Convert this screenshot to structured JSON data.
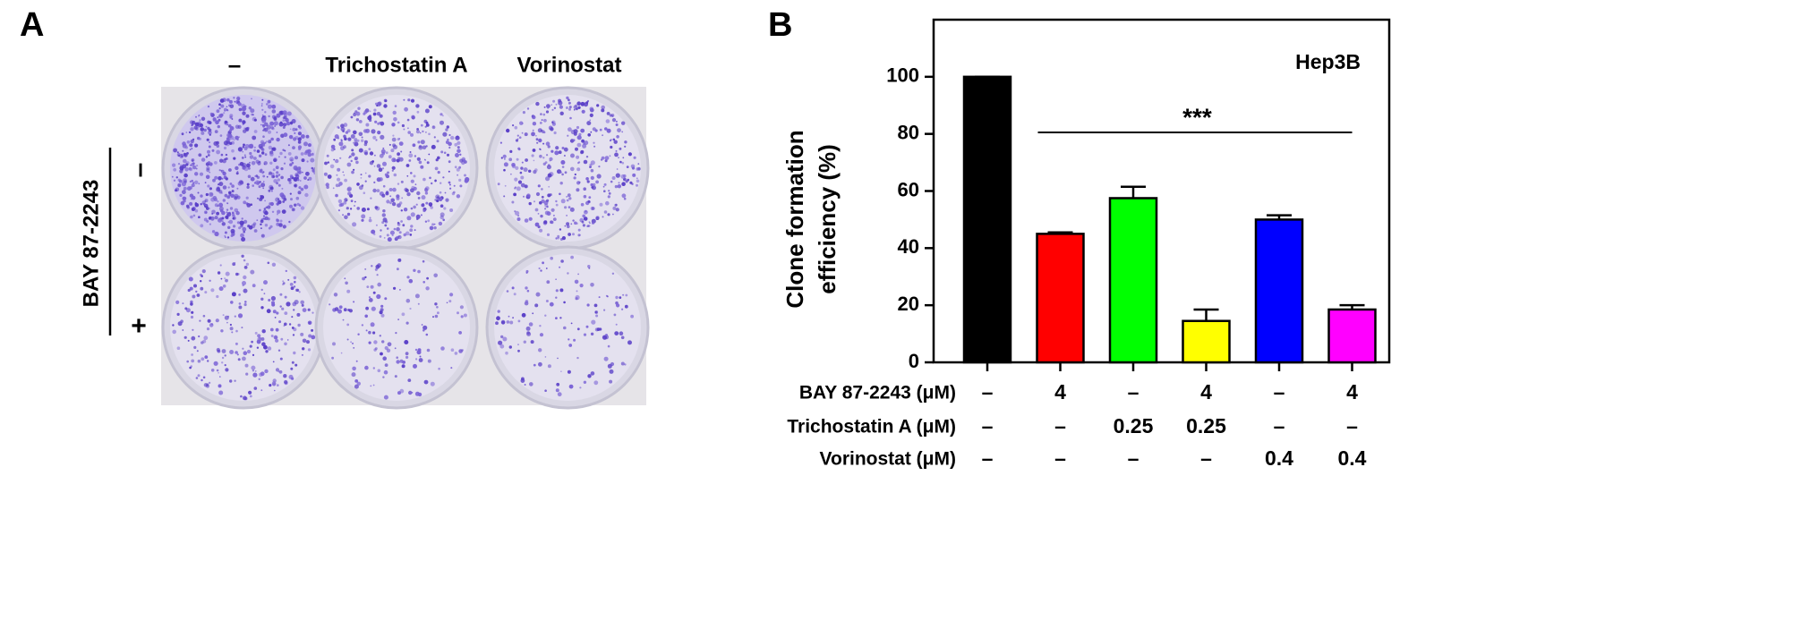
{
  "panel_labels": [
    "A",
    "B"
  ],
  "panel_a": {
    "column_labels": [
      "–",
      "Trichostatin A",
      "Vorinostat"
    ],
    "row_title": "BAY 87-2243",
    "row_labels": [
      "–",
      "+"
    ]
  },
  "chart_data": {
    "type": "bar",
    "ylabel": [
      "Clone formation",
      "efficiency (%)"
    ],
    "annotation": "Hep3B",
    "significance": "***",
    "values": [
      100,
      45,
      57.5,
      14.5,
      50,
      18.5
    ],
    "errors": [
      0,
      0.5,
      4,
      4,
      1.5,
      1.5
    ],
    "colors": [
      "#000000",
      "#ff0000",
      "#00ff00",
      "#ffff00",
      "#0000ff",
      "#ff00ff"
    ],
    "ylim": [
      0,
      120
    ],
    "yticks": [
      0,
      20,
      40,
      60,
      80,
      100
    ],
    "conditions": [
      {
        "label": "BAY 87-2243 (μM)",
        "values": [
          "–",
          "4",
          "–",
          "4",
          "–",
          "4"
        ]
      },
      {
        "label": "Trichostatin A (μM)",
        "values": [
          "–",
          "–",
          "0.25",
          "0.25",
          "–",
          "–"
        ]
      },
      {
        "label": "Vorinostat (μM)",
        "values": [
          "–",
          "–",
          "–",
          "–",
          "0.4",
          "0.4"
        ]
      }
    ]
  }
}
